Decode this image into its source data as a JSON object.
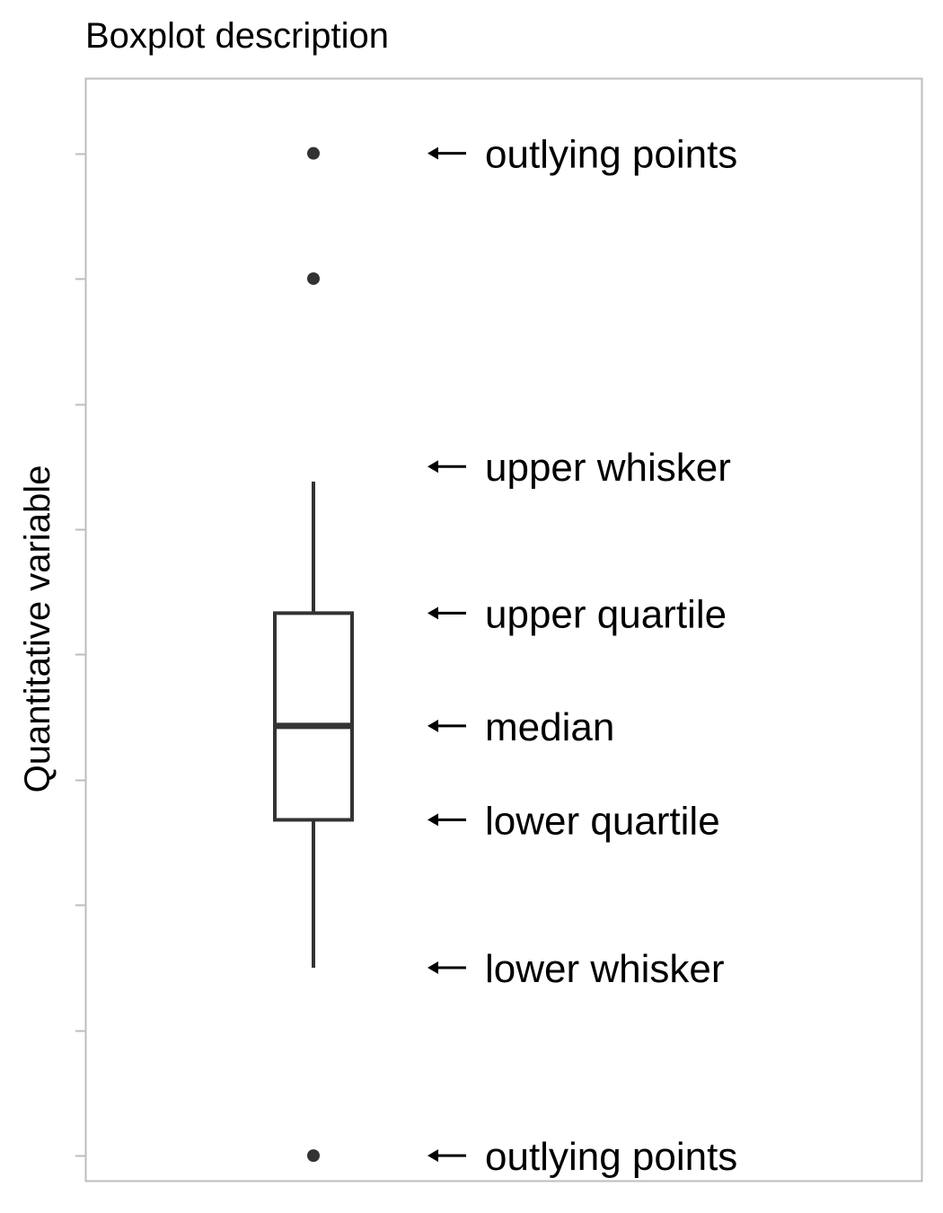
{
  "chart_data": {
    "type": "box",
    "title": "Boxplot description",
    "xlabel": "",
    "ylabel": "Quantitative variable",
    "ylim": [
      -2.2,
      6.6
    ],
    "ticks": [
      -2,
      -1,
      0,
      1,
      2,
      3,
      4,
      5,
      6
    ],
    "tick_labels_shown": false,
    "grid": false,
    "box": {
      "lower_whisker": -0.5,
      "lower_quartile": 0.68,
      "median": 1.43,
      "upper_quartile": 2.33,
      "upper_whisker": 3.38
    },
    "outliers": [
      6,
      5,
      -2
    ],
    "annotations": [
      {
        "text": "outlying points",
        "y": 6
      },
      {
        "text": "upper whisker",
        "y": 3.5
      },
      {
        "text": "upper quartile",
        "y": 2.33
      },
      {
        "text": "median",
        "y": 1.43
      },
      {
        "text": "lower quartile",
        "y": 0.68
      },
      {
        "text": "lower whisker",
        "y": -0.5
      },
      {
        "text": "outlying points",
        "y": -2
      }
    ],
    "colors": {
      "box": "#333333",
      "points": "#333333",
      "panel_border": "#bdbdbd",
      "ticks": "#bdbdbd",
      "arrows": "#000000"
    }
  }
}
